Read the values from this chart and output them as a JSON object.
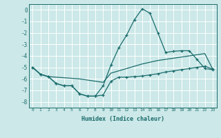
{
  "xlabel": "Humidex (Indice chaleur)",
  "background_color": "#cce8e8",
  "line_color": "#1a6b6b",
  "grid_color": "#ffffff",
  "xlim": [
    -0.5,
    23.5
  ],
  "ylim": [
    -8.5,
    0.5
  ],
  "xticks": [
    0,
    1,
    2,
    3,
    4,
    5,
    6,
    7,
    8,
    9,
    10,
    11,
    12,
    13,
    14,
    15,
    16,
    17,
    18,
    19,
    20,
    21,
    22,
    23
  ],
  "yticks": [
    0,
    -1,
    -2,
    -3,
    -4,
    -5,
    -6,
    -7,
    -8
  ],
  "series_peak_x": [
    0,
    1,
    2,
    3,
    4,
    5,
    6,
    7,
    8,
    9,
    10,
    11,
    12,
    13,
    14,
    15,
    16,
    17,
    18,
    19,
    20,
    21,
    22,
    23
  ],
  "series_peak_y": [
    -5.0,
    -5.6,
    -5.8,
    -6.4,
    -6.6,
    -6.6,
    -7.3,
    -7.5,
    -7.5,
    -6.6,
    -4.8,
    -3.3,
    -2.2,
    -0.85,
    0.1,
    -0.3,
    -2.0,
    -3.7,
    -3.6,
    -3.55,
    -3.55,
    -4.3,
    -5.1,
    -5.2
  ],
  "series_mid_x": [
    0,
    1,
    2,
    3,
    4,
    5,
    6,
    7,
    8,
    9,
    10,
    11,
    12,
    13,
    14,
    15,
    16,
    17,
    18,
    19,
    20,
    21,
    22,
    23
  ],
  "series_mid_y": [
    -5.0,
    -5.6,
    -5.8,
    -5.85,
    -5.9,
    -5.95,
    -6.0,
    -6.1,
    -6.2,
    -6.3,
    -5.5,
    -5.3,
    -5.1,
    -4.9,
    -4.7,
    -4.55,
    -4.4,
    -4.3,
    -4.2,
    -4.1,
    -4.0,
    -3.9,
    -3.8,
    -5.15
  ],
  "series_low_x": [
    0,
    1,
    2,
    3,
    4,
    5,
    6,
    7,
    8,
    9,
    10,
    11,
    12,
    13,
    14,
    15,
    16,
    17,
    18,
    19,
    20,
    21,
    22,
    23
  ],
  "series_low_y": [
    -5.0,
    -5.6,
    -5.8,
    -6.4,
    -6.6,
    -6.6,
    -7.3,
    -7.5,
    -7.5,
    -7.4,
    -6.2,
    -5.85,
    -5.85,
    -5.8,
    -5.75,
    -5.65,
    -5.55,
    -5.4,
    -5.3,
    -5.2,
    -5.1,
    -5.0,
    -4.9,
    -5.15
  ]
}
